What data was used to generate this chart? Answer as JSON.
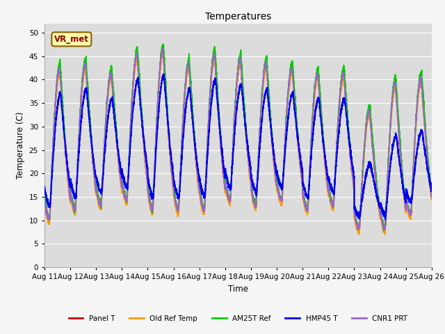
{
  "title": "Temperatures",
  "xlabel": "Time",
  "ylabel": "Temperature (C)",
  "ylim": [
    0,
    52
  ],
  "yticks": [
    0,
    5,
    10,
    15,
    20,
    25,
    30,
    35,
    40,
    45,
    50
  ],
  "x_tick_labels": [
    "Aug 11",
    "Aug 12",
    "Aug 13",
    "Aug 14",
    "Aug 15",
    "Aug 16",
    "Aug 17",
    "Aug 18",
    "Aug 19",
    "Aug 20",
    "Aug 21",
    "Aug 22",
    "Aug 23",
    "Aug 24",
    "Aug 25",
    "Aug 26"
  ],
  "annotation_text": "VR_met",
  "plot_bg_color": "#dcdcdc",
  "fig_bg_color": "#f5f5f5",
  "series": {
    "Panel_T": {
      "color": "#cc0000",
      "lw": 1.2,
      "label": "Panel T"
    },
    "Old_Ref_Temp": {
      "color": "#ff9900",
      "lw": 1.2,
      "label": "Old Ref Temp"
    },
    "AM25T_Ref": {
      "color": "#00cc00",
      "lw": 1.2,
      "label": "AM25T Ref"
    },
    "HMP45_T": {
      "color": "#0000ee",
      "lw": 1.5,
      "label": "HMP45 T"
    },
    "CNR1_PRT": {
      "color": "#9966cc",
      "lw": 1.2,
      "label": "CNR1 PRT"
    }
  },
  "day_maxes_base": [
    42,
    43,
    41,
    45,
    46,
    43,
    45,
    44,
    43,
    42,
    41,
    41,
    33,
    39,
    40
  ],
  "day_mins_base": [
    10,
    12,
    13,
    14,
    12,
    12,
    12,
    14,
    13,
    14,
    12,
    13,
    8,
    8,
    11
  ]
}
